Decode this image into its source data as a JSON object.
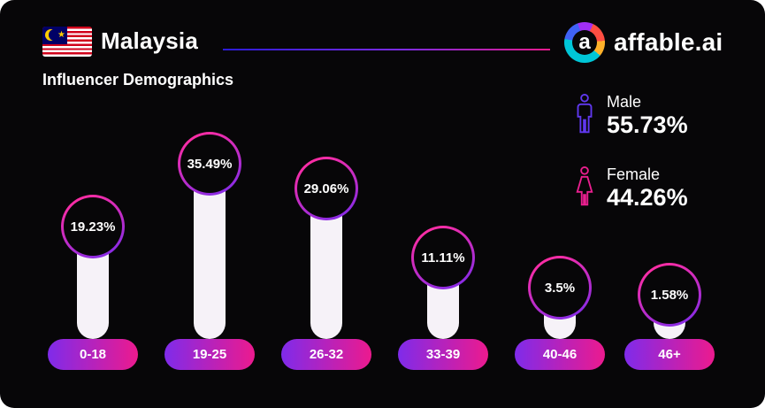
{
  "header": {
    "country": "Malaysia",
    "subtitle": "Influencer Demographics"
  },
  "brand": {
    "name": "affable.ai",
    "logo_letter": "a"
  },
  "gender_stats": {
    "male": {
      "label": "Male",
      "value": "55.73%"
    },
    "female": {
      "label": "Female",
      "value": "44.26%"
    }
  },
  "chart_data": {
    "type": "bar",
    "title": "Influencer Demographics",
    "categories": [
      "0-18",
      "19-25",
      "26-32",
      "33-39",
      "40-46",
      "46+"
    ],
    "values": [
      19.23,
      35.49,
      29.06,
      11.11,
      3.5,
      1.58
    ],
    "value_labels": [
      "19.23%",
      "35.49%",
      "29.06%",
      "11.11%",
      "3.5%",
      "1.58%"
    ],
    "ylim": [
      0,
      40
    ],
    "grid": false,
    "legend": false,
    "colors": {
      "background": "#070608",
      "bar_fill": "#f6f2f8",
      "pill_gradient_start": "#7f2bea",
      "pill_gradient_end": "#ec1a8e",
      "bubble_border_start": "#ff2da2",
      "bubble_border_end": "#7f2bea",
      "male_accent": "#6038f0",
      "female_accent": "#ea1f8f"
    }
  }
}
